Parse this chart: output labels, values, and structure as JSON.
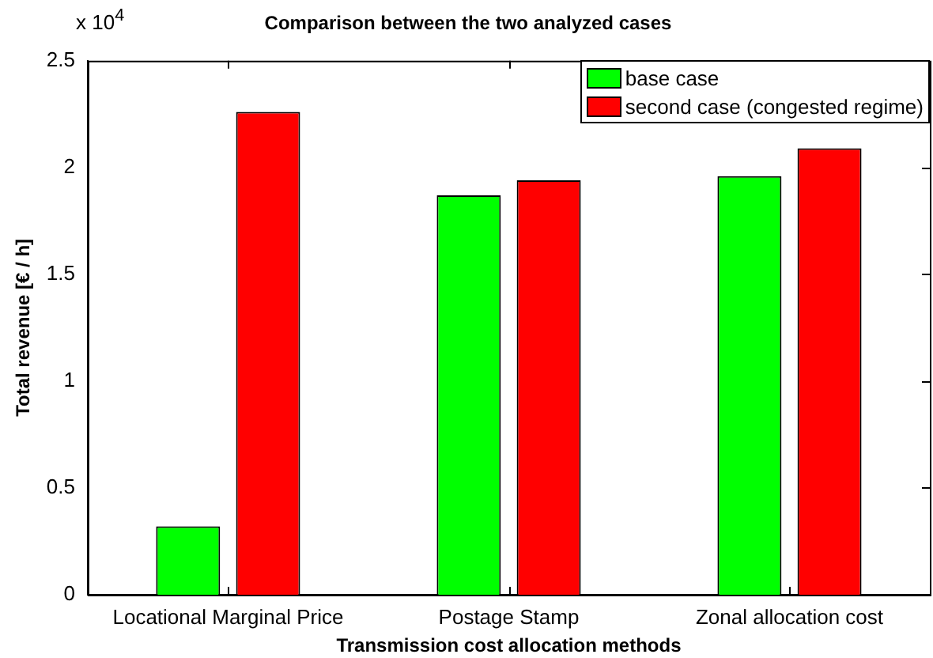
{
  "chart_data": {
    "type": "bar",
    "title": "Comparison between the two analyzed cases",
    "xlabel": "Transmission cost allocation methods",
    "ylabel": "Total revenue [€ / h]",
    "categories": [
      "Locational Marginal Price",
      "Postage Stamp",
      "Zonal allocation cost"
    ],
    "series": [
      {
        "name": "base case",
        "color": "#00ff00",
        "values": [
          0.32,
          1.87,
          1.96
        ]
      },
      {
        "name": "second case (congested regime)",
        "color": "#ff0000",
        "values": [
          2.26,
          1.94,
          2.09
        ]
      }
    ],
    "ylim": [
      0,
      2.5
    ],
    "yticks": [
      0,
      0.5,
      1,
      1.5,
      2,
      2.5
    ],
    "annotations": [
      "x 10$^{4}$"
    ],
    "grid": false,
    "legend": "top right"
  }
}
